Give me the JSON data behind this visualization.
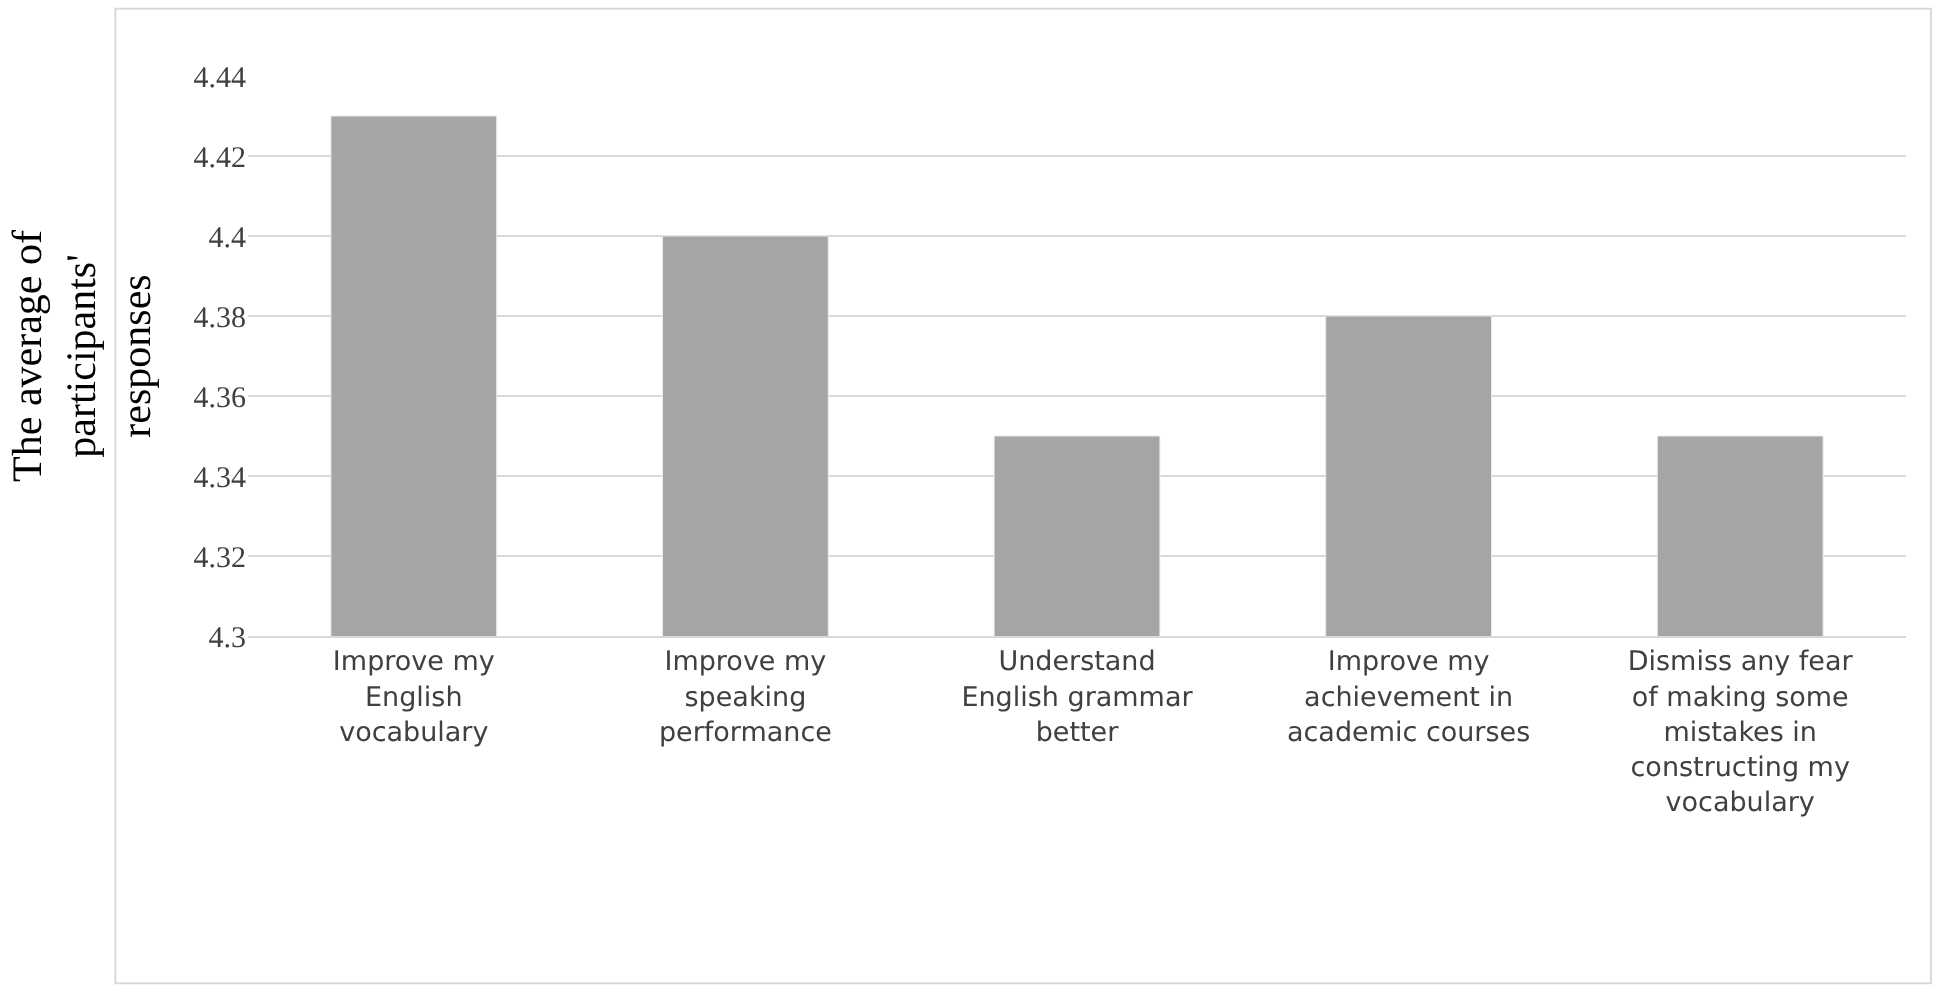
{
  "chart_data": {
    "type": "bar",
    "ylabel": "The average of participants' responses",
    "categories": [
      "Improve my English vocabulary",
      "Improve my speaking performance",
      "Understand English grammar better",
      "Improve my achievement in academic courses",
      "Dismiss any fear of making some mistakes in constructing my vocabulary"
    ],
    "values": [
      4.43,
      4.4,
      4.35,
      4.38,
      4.35
    ],
    "color": "#a5a5a5",
    "ylim": [
      4.3,
      4.44
    ],
    "yticks": [
      4.3,
      4.32,
      4.34,
      4.36,
      4.38,
      4.4,
      4.42,
      4.44
    ],
    "grid": "y",
    "legend": false
  }
}
